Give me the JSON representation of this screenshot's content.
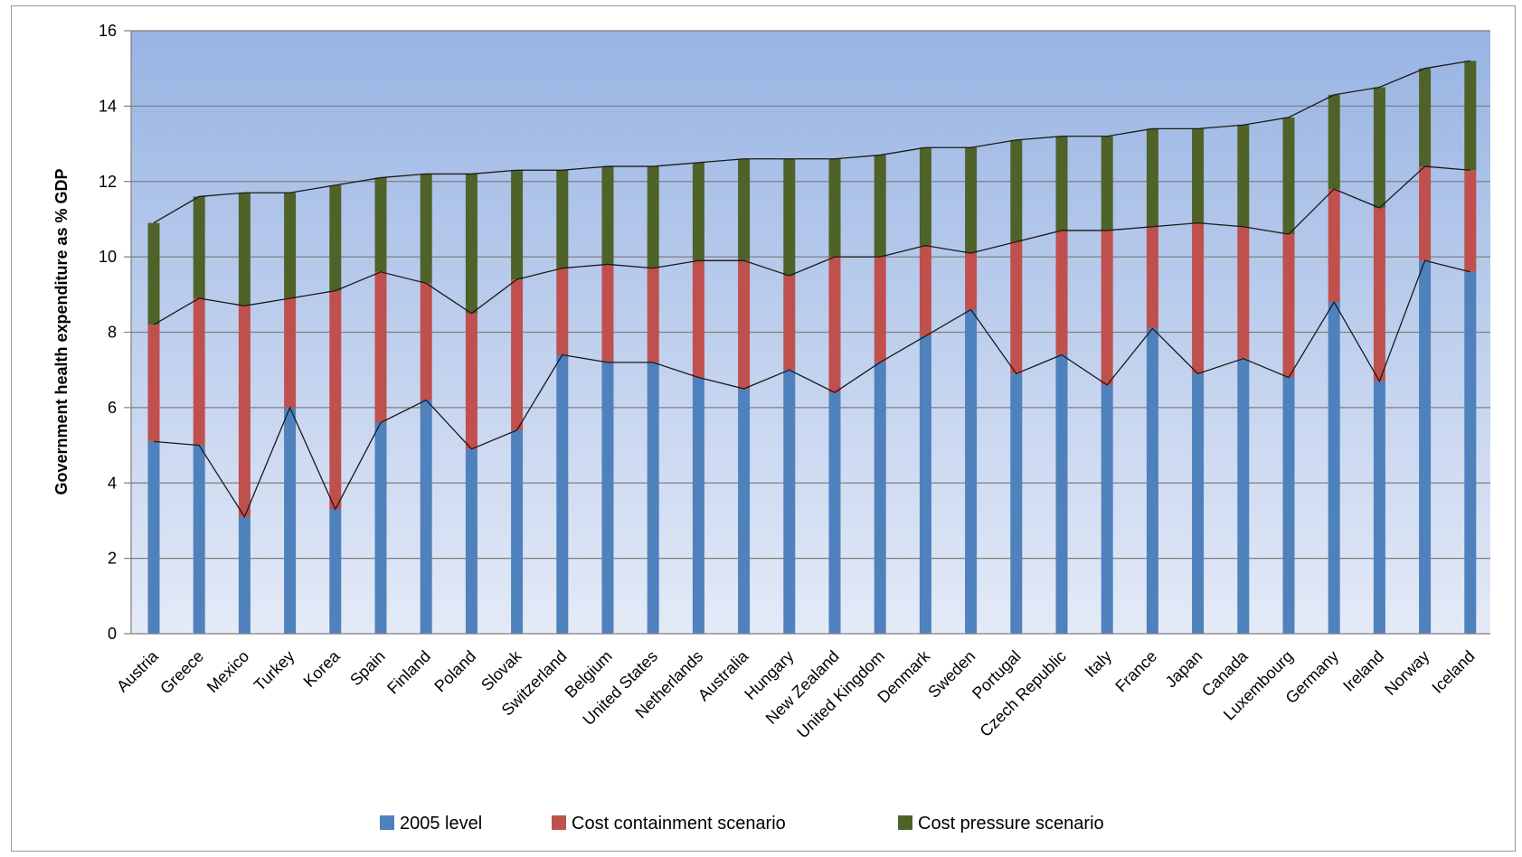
{
  "chart_data": {
    "type": "bar",
    "stacked": true,
    "ylabel": "Government health expenditure as % GDP",
    "xlabel": "",
    "ylim": [
      0,
      16
    ],
    "yticks": [
      0,
      2,
      4,
      6,
      8,
      10,
      12,
      14,
      16
    ],
    "grid": true,
    "legend_position": "bottom",
    "categories": [
      "Austria",
      "Greece",
      "Mexico",
      "Turkey",
      "Korea",
      "Spain",
      "Finland",
      "Poland",
      "Slovak",
      "Switzerland",
      "Belgium",
      "United States",
      "Netherlands",
      "Australia",
      "Hungary",
      "New Zealand",
      "United Kingdom",
      "Denmark",
      "Sweden",
      "Portugal",
      "Czech Republic",
      "Italy",
      "France",
      "Japan",
      "Canada",
      "Luxembourg",
      "Germany",
      "Ireland",
      "Norway",
      "Iceland"
    ],
    "series": [
      {
        "name": "2005 level",
        "color": "#4f81bd",
        "values": [
          5.1,
          5.0,
          3.1,
          6.0,
          3.3,
          5.6,
          6.2,
          4.9,
          5.4,
          7.4,
          7.2,
          7.2,
          6.8,
          6.5,
          7.0,
          6.4,
          7.2,
          7.9,
          8.6,
          6.9,
          7.4,
          6.6,
          8.1,
          6.9,
          7.3,
          6.8,
          8.8,
          6.7,
          9.9,
          9.6
        ]
      },
      {
        "name": "Cost containment scenario",
        "color": "#c0504d",
        "values": [
          3.1,
          3.9,
          5.6,
          2.9,
          5.8,
          4.0,
          3.1,
          3.6,
          4.0,
          2.3,
          2.6,
          2.5,
          3.1,
          3.4,
          2.5,
          3.6,
          2.8,
          2.4,
          1.5,
          3.5,
          3.3,
          4.1,
          2.7,
          4.0,
          3.5,
          3.8,
          3.0,
          4.6,
          2.5,
          2.7
        ]
      },
      {
        "name": "Cost pressure scenario",
        "color": "#4f6228",
        "values": [
          2.7,
          2.7,
          3.0,
          2.8,
          2.8,
          2.5,
          2.9,
          3.7,
          2.9,
          2.6,
          2.6,
          2.7,
          2.6,
          2.7,
          3.1,
          2.6,
          2.7,
          2.6,
          2.8,
          2.7,
          2.5,
          2.5,
          2.6,
          2.5,
          2.7,
          3.1,
          2.5,
          3.2,
          2.6,
          2.9
        ]
      }
    ]
  }
}
